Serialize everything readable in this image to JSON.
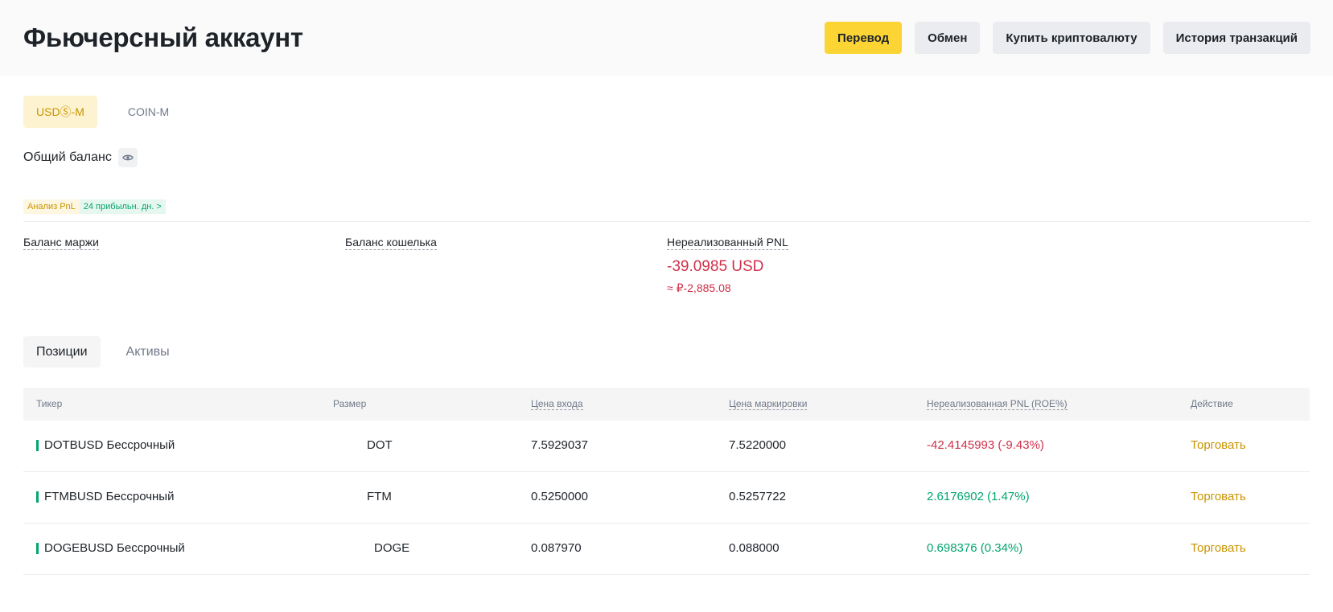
{
  "header": {
    "title": "Фьючерсный аккаунт",
    "buttons": {
      "transfer": "Перевод",
      "exchange": "Обмен",
      "buy_crypto": "Купить криптовалюту",
      "history": "История транзакций"
    }
  },
  "account_tabs": {
    "usds_m": "USDⓈ-M",
    "coin_m": "COIN-M",
    "active": "usds_m"
  },
  "balance": {
    "title": "Общий баланс",
    "pnl_analysis": "Анализ PnL",
    "profit_days": "24 прибыльн. дн. >",
    "margin_balance_label": "Баланс маржи",
    "wallet_balance_label": "Баланс кошелька",
    "unrealized_pnl_label": "Нереализованный PNL",
    "unrealized_pnl_value": "-39.0985 USD",
    "unrealized_pnl_approx": "≈ ₽-2,885.08"
  },
  "position_tabs": {
    "positions": "Позиции",
    "assets": "Активы",
    "active": "positions"
  },
  "table": {
    "headers": {
      "ticker": "Тикер",
      "size": "Размер",
      "entry_price": "Цена входа",
      "mark_price": "Цена маркировки",
      "unrealized_pnl": "Нереализованная PNL (ROE%)",
      "action": "Действие"
    },
    "rows": [
      {
        "ticker": "DOTBUSD Бессрочный",
        "size": "DOT",
        "entry": "7.5929037",
        "mark": "7.5220000",
        "pnl": "-42.4145993 (-9.43%)",
        "pnl_sign": "neg",
        "action": "Торговать"
      },
      {
        "ticker": "FTMBUSD Бессрочный",
        "size": "FTM",
        "entry": "0.5250000",
        "mark": "0.5257722",
        "pnl": "2.6176902 (1.47%)",
        "pnl_sign": "pos",
        "action": "Торговать"
      },
      {
        "ticker": "DOGEBUSD Бессрочный",
        "size": "DOGE",
        "entry": "0.087970",
        "mark": "0.088000",
        "pnl": "0.698376 (0.34%)",
        "pnl_sign": "pos",
        "action": "Торговать"
      }
    ]
  },
  "colors": {
    "accent": "#fcd535",
    "negative": "#cf304a",
    "positive": "#03a66d",
    "link": "#c99400"
  }
}
